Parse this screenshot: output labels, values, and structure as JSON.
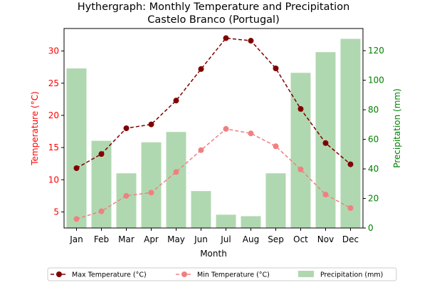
{
  "chart_data": {
    "type": "bar+line",
    "title": "Hythergraph: Monthly Temperature and Precipitation",
    "subtitle": "Castelo Branco (Portugal)",
    "xlabel": "Month",
    "ylabel_left": "Temperature (°C)",
    "ylabel_right": "Precipitation (mm)",
    "categories": [
      "Jan",
      "Feb",
      "Mar",
      "Apr",
      "May",
      "Jun",
      "Jul",
      "Aug",
      "Sep",
      "Oct",
      "Nov",
      "Dec"
    ],
    "ylim_left": [
      2.5,
      33.5
    ],
    "yticks_left": [
      5,
      10,
      15,
      20,
      25,
      30
    ],
    "ylim_right": [
      0,
      135
    ],
    "yticks_right": [
      0,
      20,
      40,
      60,
      80,
      100,
      120
    ],
    "legend_position": "bottom",
    "grid": false,
    "series": [
      {
        "name": "Precipitation (mm)",
        "kind": "bar",
        "axis": "right",
        "color": "#b0d8b0",
        "values": [
          108,
          59,
          37,
          58,
          65,
          25,
          9,
          8,
          37,
          105,
          119,
          128
        ]
      },
      {
        "name": "Max Temperature (°C)",
        "kind": "line",
        "axis": "left",
        "color": "#800000",
        "dashed": true,
        "values": [
          11.8,
          14.0,
          18.0,
          18.6,
          22.3,
          27.2,
          32.0,
          31.6,
          27.3,
          21.0,
          15.7,
          12.4
        ]
      },
      {
        "name": "Min Temperature (°C)",
        "kind": "line",
        "axis": "left",
        "color": "#f08080",
        "dashed": true,
        "values": [
          3.9,
          5.1,
          7.5,
          8.0,
          11.2,
          14.6,
          17.9,
          17.2,
          15.2,
          11.6,
          7.7,
          5.6
        ]
      }
    ],
    "colors": {
      "left_axis": "#ff0000",
      "right_axis": "#008000",
      "axis_line": "#000000"
    }
  }
}
